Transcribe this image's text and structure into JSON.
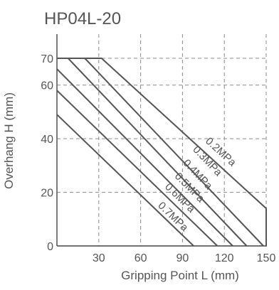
{
  "chart_data": {
    "type": "line",
    "title": "HP04L-20",
    "xlabel": "Gripping Point L (mm)",
    "ylabel": "Overhang H (mm)",
    "xlim": [
      0,
      150
    ],
    "ylim": [
      0,
      70
    ],
    "x_ticks": [
      30,
      60,
      90,
      120,
      150
    ],
    "y_ticks": [
      0,
      20,
      40,
      60,
      70
    ],
    "x_tick_labels": [
      "30",
      "60",
      "90",
      "120",
      "150"
    ],
    "y_tick_labels": [
      "0",
      "20",
      "40",
      "60",
      "70"
    ],
    "grid": true,
    "legend": "inline labels on lines",
    "series": [
      {
        "name": "0.2MPa",
        "x": [
          0,
          32,
          150,
          150
        ],
        "y": [
          70,
          70,
          14,
          0
        ]
      },
      {
        "name": "0.3MPa",
        "x": [
          0,
          20,
          148
        ],
        "y": [
          70,
          70,
          0
        ]
      },
      {
        "name": "0.4MPa",
        "x": [
          0,
          8,
          136
        ],
        "y": [
          70,
          70,
          0
        ]
      },
      {
        "name": "0.5MPa",
        "x": [
          0,
          126
        ],
        "y": [
          66,
          0
        ]
      },
      {
        "name": "0.6MPa",
        "x": [
          0,
          115
        ],
        "y": [
          58,
          0
        ]
      },
      {
        "name": "0.7MPa",
        "x": [
          0,
          98
        ],
        "y": [
          49,
          0
        ]
      }
    ],
    "line_color": "#555555",
    "grid_color": "#8a8a8a"
  }
}
